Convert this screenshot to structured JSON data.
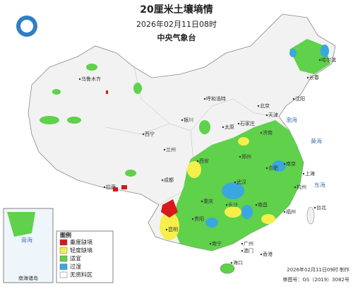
{
  "header": {
    "title": "20厘米土壤墒情",
    "time": "2026年02月11日08时",
    "issuer": "中央气象台"
  },
  "legend": {
    "title": "图例",
    "items": [
      {
        "label": "重度缺墒",
        "color": "#d7191c"
      },
      {
        "label": "轻度缺墒",
        "color": "#f5ef4a"
      },
      {
        "label": "适宜",
        "color": "#5fd14a"
      },
      {
        "label": "过湿",
        "color": "#3aa7e0"
      },
      {
        "label": "无资料区",
        "color": "#ffffff"
      }
    ]
  },
  "places": [
    "乌鲁木齐",
    "拉萨",
    "西宁",
    "兰州",
    "银川",
    "呼和浩特",
    "北京",
    "天津",
    "石家庄",
    "太原",
    "济南",
    "郑州",
    "西安",
    "成都",
    "重庆",
    "武汉",
    "合肥",
    "南京",
    "上海",
    "杭州",
    "长沙",
    "南昌",
    "福州",
    "台北",
    "贵阳",
    "昆明",
    "南宁",
    "广州",
    "香港",
    "澳门",
    "海口",
    "沈阳",
    "长春",
    "哈尔滨"
  ],
  "seas": [
    "渤海",
    "黄海",
    "东海",
    "南海"
  ],
  "inset": {
    "label": "南海诸岛"
  },
  "footer": {
    "made": "2026年02月11日09时 制作",
    "review": "审图号：GS（2019）3082号"
  }
}
